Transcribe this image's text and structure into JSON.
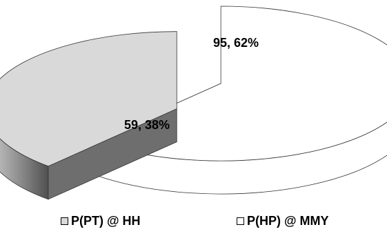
{
  "chart_data": {
    "type": "pie",
    "style": "3d-exploded",
    "series": [
      {
        "name": "P(PT) @ HH",
        "value": 59,
        "percent": 38,
        "label": "59, 38%",
        "color": "#d9d9d9"
      },
      {
        "name": "P(HP) @ MMY",
        "value": 95,
        "percent": 62,
        "label": "95, 62%",
        "color": "#ffffff"
      }
    ],
    "legend_position": "bottom"
  }
}
